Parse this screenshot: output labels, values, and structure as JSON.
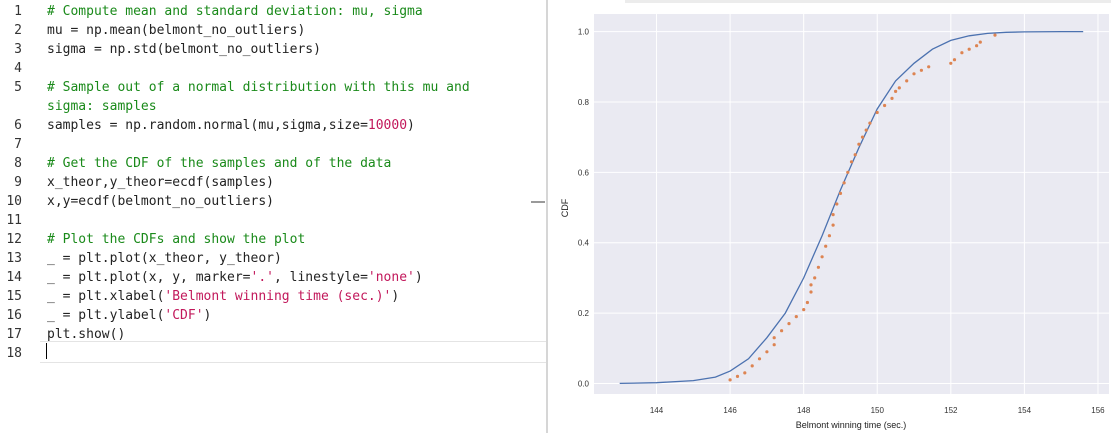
{
  "editor": {
    "lines": [
      {
        "n": "1",
        "segments": [
          {
            "t": "# Compute mean and standard deviation: mu, sigma",
            "c": "cm"
          }
        ]
      },
      {
        "n": "2",
        "segments": [
          {
            "t": "mu = np.mean(belmont_no_outliers)",
            "c": ""
          }
        ]
      },
      {
        "n": "3",
        "segments": [
          {
            "t": "sigma = np.std(belmont_no_outliers)",
            "c": ""
          }
        ]
      },
      {
        "n": "4",
        "segments": []
      },
      {
        "n": "5",
        "segments": [
          {
            "t": "# Sample out of a normal distribution with this mu and",
            "c": "cm"
          }
        ]
      },
      {
        "n": "",
        "segments": [
          {
            "t": "sigma: samples",
            "c": "cm"
          }
        ]
      },
      {
        "n": "6",
        "segments": [
          {
            "t": "samples = np.random.normal(mu,sigma,size=",
            "c": ""
          },
          {
            "t": "10000",
            "c": "num"
          },
          {
            "t": ")",
            "c": ""
          }
        ]
      },
      {
        "n": "7",
        "segments": []
      },
      {
        "n": "8",
        "segments": [
          {
            "t": "# Get the CDF of the samples and of the data",
            "c": "cm"
          }
        ]
      },
      {
        "n": "9",
        "segments": [
          {
            "t": "x_theor,y_theor=ecdf(samples)",
            "c": ""
          }
        ]
      },
      {
        "n": "10",
        "segments": [
          {
            "t": "x,y=ecdf(belmont_no_outliers)",
            "c": ""
          }
        ]
      },
      {
        "n": "11",
        "segments": []
      },
      {
        "n": "12",
        "segments": [
          {
            "t": "# Plot the CDFs and show the plot",
            "c": "cm"
          }
        ]
      },
      {
        "n": "13",
        "segments": [
          {
            "t": "_ = plt.plot(x_theor, y_theor)",
            "c": ""
          }
        ]
      },
      {
        "n": "14",
        "segments": [
          {
            "t": "_ = plt.plot(x, y, marker=",
            "c": ""
          },
          {
            "t": "'.'",
            "c": "str"
          },
          {
            "t": ", linestyle=",
            "c": ""
          },
          {
            "t": "'none'",
            "c": "str"
          },
          {
            "t": ")",
            "c": ""
          }
        ]
      },
      {
        "n": "15",
        "segments": [
          {
            "t": "_ = plt.xlabel(",
            "c": ""
          },
          {
            "t": "'Belmont winning time (sec.)'",
            "c": "str"
          },
          {
            "t": ")",
            "c": ""
          }
        ]
      },
      {
        "n": "16",
        "segments": [
          {
            "t": "_ = plt.ylabel(",
            "c": ""
          },
          {
            "t": "'CDF'",
            "c": "str"
          },
          {
            "t": ")",
            "c": ""
          }
        ]
      },
      {
        "n": "17",
        "segments": [
          {
            "t": "plt.show()",
            "c": ""
          }
        ]
      },
      {
        "n": "18",
        "segments": []
      }
    ]
  },
  "chart_data": {
    "type": "line",
    "xlabel": "Belmont winning time (sec.)",
    "ylabel": "CDF",
    "xlim": [
      142.3,
      156.3
    ],
    "ylim": [
      -0.03,
      1.05
    ],
    "xticks": [
      144,
      146,
      148,
      150,
      152,
      154,
      156
    ],
    "yticks": [
      0.0,
      0.2,
      0.4,
      0.6,
      0.8,
      1.0
    ],
    "ytick_labels": [
      "0.0",
      "0.2",
      "0.4",
      "0.6",
      "0.8",
      "1.0"
    ],
    "grid": true,
    "colors": {
      "background": "#eaeaf2",
      "theory": "#4c72b0",
      "data": "#dd8452",
      "grid": "#ffffff"
    },
    "series": [
      {
        "kind": "line",
        "x": [
          143.0,
          144.0,
          145.0,
          145.6,
          146.0,
          146.5,
          147.0,
          147.5,
          148.0,
          148.5,
          149.0,
          149.5,
          150.0,
          150.5,
          151.0,
          151.5,
          152.0,
          152.5,
          153.0,
          153.5,
          154.0,
          155.0,
          155.6
        ],
        "y": [
          0.0,
          0.002,
          0.008,
          0.018,
          0.035,
          0.07,
          0.13,
          0.2,
          0.3,
          0.42,
          0.55,
          0.67,
          0.78,
          0.86,
          0.91,
          0.95,
          0.975,
          0.988,
          0.995,
          0.998,
          0.999,
          1.0,
          1.0
        ]
      },
      {
        "kind": "points",
        "x": [
          146.0,
          146.2,
          146.4,
          146.6,
          146.8,
          147.0,
          147.2,
          147.2,
          147.4,
          147.6,
          147.8,
          148.0,
          148.1,
          148.2,
          148.2,
          148.3,
          148.4,
          148.5,
          148.6,
          148.7,
          148.8,
          148.8,
          148.9,
          149.0,
          149.1,
          149.2,
          149.3,
          149.4,
          149.5,
          149.6,
          149.7,
          149.8,
          150.0,
          150.2,
          150.4,
          150.5,
          150.6,
          150.8,
          151.0,
          151.2,
          151.4,
          152.0,
          152.1,
          152.3,
          152.5,
          152.7,
          152.8,
          153.2
        ],
        "y": [
          0.01,
          0.02,
          0.03,
          0.05,
          0.07,
          0.09,
          0.11,
          0.13,
          0.15,
          0.17,
          0.19,
          0.21,
          0.23,
          0.26,
          0.28,
          0.3,
          0.33,
          0.36,
          0.39,
          0.42,
          0.45,
          0.48,
          0.51,
          0.54,
          0.57,
          0.6,
          0.63,
          0.65,
          0.68,
          0.7,
          0.72,
          0.74,
          0.77,
          0.79,
          0.81,
          0.83,
          0.84,
          0.86,
          0.88,
          0.89,
          0.9,
          0.91,
          0.92,
          0.94,
          0.95,
          0.96,
          0.97,
          0.99
        ]
      }
    ]
  }
}
